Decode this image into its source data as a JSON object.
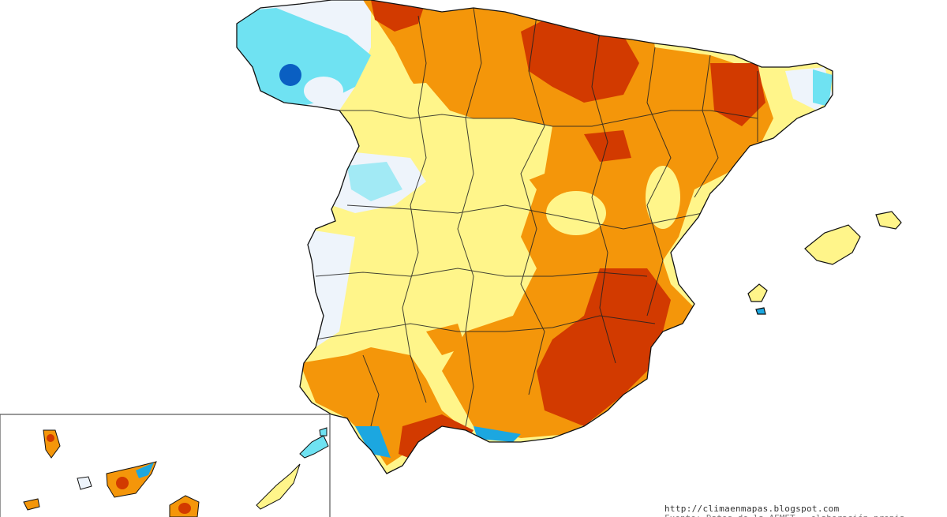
{
  "map": {
    "colors": {
      "background": "#ffffff",
      "strong_deficit": "#d23a00",
      "deficit": "#f4960a",
      "slight_deficit": "#fff58a",
      "normal": "#eef4fb",
      "surplus": "#6fe2f2",
      "strong_surplus": "#1ca7e0",
      "very_strong_surplus": "#0a5fc2",
      "border": "#222222"
    },
    "regions": [
      "peninsula",
      "balearic-islands",
      "canary-islands-inset"
    ]
  },
  "footer": {
    "credit_url": "http://climaenmapas.blogspot.com",
    "credit_line2": "Fuente: Datos de la AEMET - elaboración propia"
  }
}
